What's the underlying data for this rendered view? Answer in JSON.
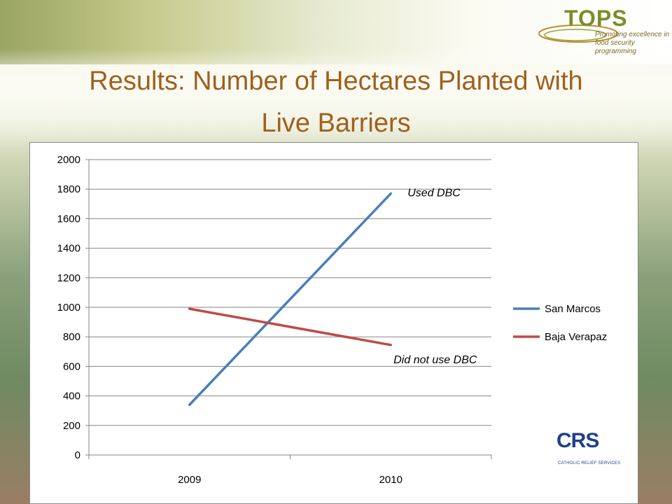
{
  "slide": {
    "title_line1": "Results:   Number of Hectares Planted with",
    "title_line2": "Live Barriers"
  },
  "logos": {
    "tops_brand": "TOPS",
    "tops_tagline": "Promoting excellence in food security programming",
    "crs_mark": "CRS",
    "crs_sub": "CATHOLIC RELIEF SERVICES"
  },
  "chart_data": {
    "type": "line",
    "title": "",
    "xlabel": "",
    "ylabel": "",
    "categories": [
      "2009",
      "2010"
    ],
    "ylim": [
      0,
      2000
    ],
    "yticks": [
      0,
      200,
      400,
      600,
      800,
      1000,
      1200,
      1400,
      1600,
      1800,
      2000
    ],
    "grid": true,
    "legend_position": "right",
    "series": [
      {
        "name": "San Marcos",
        "values": [
          340,
          1770
        ],
        "color": "#4a7ebb"
      },
      {
        "name": "Baja Verapaz",
        "values": [
          990,
          745
        ],
        "color": "#be4b48"
      }
    ],
    "annotations": [
      {
        "text": "Used DBC",
        "series": 0
      },
      {
        "text": "Did not use DBC",
        "series": 1
      }
    ]
  }
}
